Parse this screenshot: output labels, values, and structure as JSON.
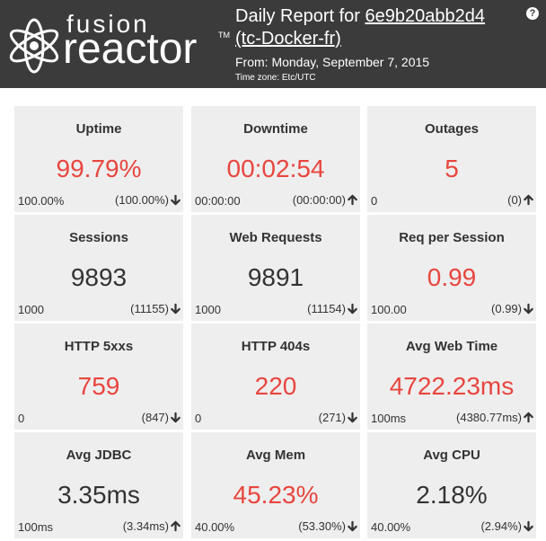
{
  "header": {
    "logo_top": "fusion",
    "logo_bottom": "reactor",
    "logo_tm": "TM",
    "title_prefix": "Daily Report for",
    "server_id": "6e9b20abb2d4",
    "instance": "(tc-Docker-fr)",
    "from": "From: Monday, September 7, 2015",
    "timezone": "Time zone: Etc/UTC",
    "help_label": "?"
  },
  "colors": {
    "header_bg": "#3b3b3b",
    "card_bg": "#eeeeee",
    "bad": "#e8463f",
    "normal": "#333333"
  },
  "cards": [
    {
      "title": "Uptime",
      "value": "99.79%",
      "status": "bad",
      "base": "100.00%",
      "previous": "(100.00%)",
      "trend": "down"
    },
    {
      "title": "Downtime",
      "value": "00:02:54",
      "status": "bad",
      "base": "00:00:00",
      "previous": "(00:00:00)",
      "trend": "up"
    },
    {
      "title": "Outages",
      "value": "5",
      "status": "bad",
      "base": "0",
      "previous": "(0)",
      "trend": "up"
    },
    {
      "title": "Sessions",
      "value": "9893",
      "status": "normal",
      "base": "1000",
      "previous": "(11155)",
      "trend": "down"
    },
    {
      "title": "Web Requests",
      "value": "9891",
      "status": "normal",
      "base": "1000",
      "previous": "(11154)",
      "trend": "down"
    },
    {
      "title": "Req per Session",
      "value": "0.99",
      "status": "bad",
      "base": "100.00",
      "previous": "(0.99)",
      "trend": "down"
    },
    {
      "title": "HTTP 5xxs",
      "value": "759",
      "status": "bad",
      "base": "0",
      "previous": "(847)",
      "trend": "down"
    },
    {
      "title": "HTTP 404s",
      "value": "220",
      "status": "bad",
      "base": "0",
      "previous": "(271)",
      "trend": "down"
    },
    {
      "title": "Avg Web Time",
      "value": "4722.23ms",
      "status": "bad",
      "base": "100ms",
      "previous": "(4380.77ms)",
      "trend": "up"
    },
    {
      "title": "Avg JDBC",
      "value": "3.35ms",
      "status": "normal",
      "base": "100ms",
      "previous": "(3.34ms)",
      "trend": "up"
    },
    {
      "title": "Avg Mem",
      "value": "45.23%",
      "status": "bad",
      "base": "40.00%",
      "previous": "(53.30%)",
      "trend": "down"
    },
    {
      "title": "Avg CPU",
      "value": "2.18%",
      "status": "normal",
      "base": "40.00%",
      "previous": "(2.94%)",
      "trend": "down"
    }
  ]
}
